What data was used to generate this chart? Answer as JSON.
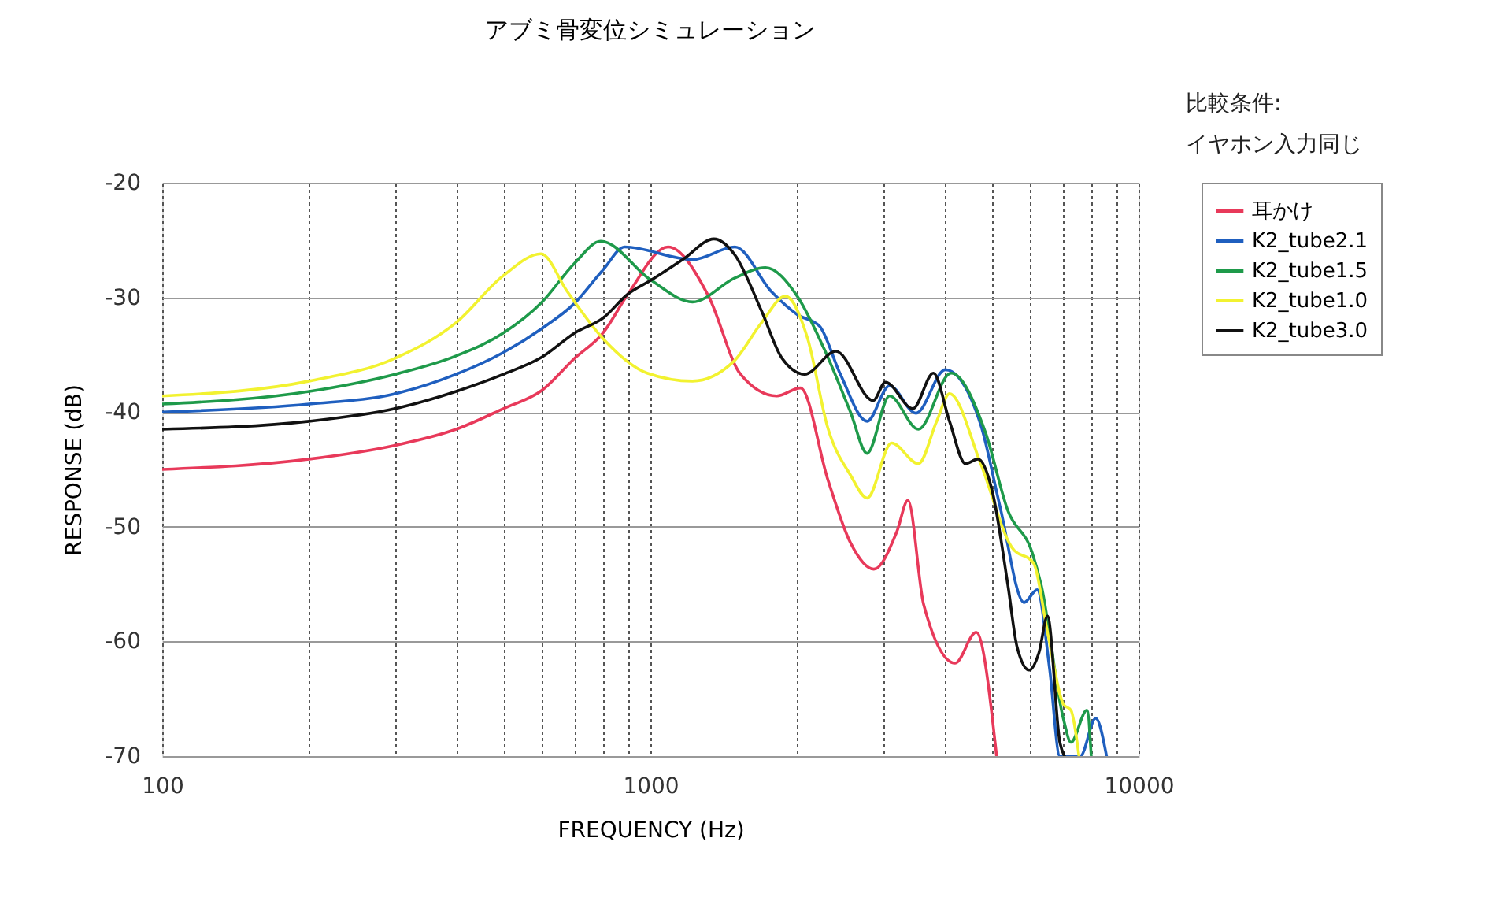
{
  "chart_data": {
    "type": "line",
    "title": "アブミ骨変位シミュレーション",
    "xlabel": "FREQUENCY (Hz)",
    "ylabel": "RESPONSE (dB)",
    "annotations": [
      "比較条件:",
      "イヤホン入力同じ"
    ],
    "log": "x",
    "xlim": [
      100,
      10000
    ],
    "ylim": [
      -70,
      -20
    ],
    "xticks": [
      100,
      {
        "value": 200,
        "label": null
      },
      {
        "value": 300,
        "label": null
      },
      {
        "value": 400,
        "label": null
      },
      {
        "value": 500,
        "label": null
      },
      {
        "value": 600,
        "label": null
      },
      {
        "value": 700,
        "label": null
      },
      {
        "value": 800,
        "label": null
      },
      {
        "value": 900,
        "label": null
      },
      1000,
      {
        "value": 2000,
        "label": null
      },
      {
        "value": 3000,
        "label": null
      },
      {
        "value": 4000,
        "label": null
      },
      {
        "value": 5000,
        "label": null
      },
      {
        "value": 6000,
        "label": null
      },
      {
        "value": 7000,
        "label": null
      },
      {
        "value": 8000,
        "label": null
      },
      {
        "value": 9000,
        "label": null
      },
      10000
    ],
    "yticks": [
      -70,
      -60,
      -50,
      -40,
      -30,
      -20
    ],
    "grid": true,
    "legend": "right",
    "marker": "none",
    "line_style": "solid",
    "series": [
      {
        "name": "耳かけ",
        "color": "#e8395a",
        "x": [
          100,
          200,
          300,
          400,
          500,
          600,
          700,
          800,
          900,
          1087,
          1316,
          1530,
          1815,
          2030,
          2310,
          2570,
          2870,
          3200,
          3370,
          3630,
          4210,
          4650,
          5120
        ],
        "values": [
          -45.0,
          -44.1,
          -42.9,
          -41.5,
          -39.7,
          -38.1,
          -35.3,
          -33.1,
          -29.7,
          -25.6,
          -29.9,
          -36.7,
          -38.6,
          -37.9,
          -45.9,
          -51.4,
          -53.7,
          -50.4,
          -47.7,
          -56.8,
          -61.9,
          -59.2,
          -70
        ]
      },
      {
        "name": "K2_tube2.1",
        "color": "#1f5fbf",
        "x": [
          100,
          200,
          300,
          400,
          500,
          600,
          700,
          800,
          886,
          1220,
          1490,
          1770,
          2000,
          2220,
          2450,
          2780,
          3090,
          3500,
          4020,
          4750,
          5200,
          5830,
          6200,
          6570,
          6900,
          7600,
          8170,
          8600
        ],
        "values": [
          -40.0,
          -39.3,
          -38.4,
          -36.7,
          -34.8,
          -32.7,
          -30.5,
          -27.6,
          -25.6,
          -26.7,
          -25.6,
          -29.5,
          -31.5,
          -32.5,
          -36.7,
          -40.8,
          -37.7,
          -40.1,
          -36.3,
          -41.1,
          -48.2,
          -56.6,
          -55.5,
          -62.3,
          -70,
          -70,
          -66.7,
          -70
        ]
      },
      {
        "name": "K2_tube1.5",
        "color": "#1e9a4a",
        "x": [
          100,
          200,
          300,
          400,
          500,
          600,
          700,
          791,
          1003,
          1220,
          1490,
          1720,
          2000,
          2270,
          2570,
          2780,
          3090,
          3540,
          4130,
          4860,
          5400,
          6060,
          6320,
          7020,
          7270,
          7840,
          8000
        ],
        "values": [
          -39.3,
          -38.2,
          -36.7,
          -35.1,
          -33.1,
          -30.4,
          -27.0,
          -25.1,
          -28.5,
          -30.4,
          -28.3,
          -27.4,
          -29.9,
          -34.5,
          -40.0,
          -43.6,
          -38.6,
          -41.5,
          -36.6,
          -41.8,
          -48.6,
          -52.3,
          -55.1,
          -66.8,
          -68.8,
          -66.0,
          -70
        ]
      },
      {
        "name": "K2_tube1.0",
        "color": "#f2f230",
        "x": [
          100,
          200,
          300,
          400,
          500,
          597,
          676,
          800,
          985,
          1220,
          1480,
          1690,
          1890,
          2100,
          2310,
          2570,
          2780,
          3120,
          3540,
          3860,
          4100,
          4750,
          5500,
          6100,
          6510,
          7020,
          7270,
          7550
        ],
        "values": [
          -38.6,
          -37.3,
          -35.3,
          -32.2,
          -28.1,
          -26.2,
          -29.5,
          -33.6,
          -36.6,
          -37.3,
          -35.6,
          -32.2,
          -29.9,
          -33.6,
          -41.4,
          -45.5,
          -47.5,
          -42.7,
          -44.5,
          -40.8,
          -38.4,
          -44.5,
          -51.8,
          -53.2,
          -59.2,
          -65.5,
          -66.0,
          -70
        ]
      },
      {
        "name": "K2_tube3.0",
        "color": "#111111",
        "x": [
          100,
          200,
          300,
          400,
          500,
          600,
          700,
          800,
          900,
          1003,
          1165,
          1350,
          1490,
          1690,
          1860,
          2070,
          2400,
          2860,
          3030,
          3450,
          3800,
          4100,
          4420,
          4690,
          5010,
          5400,
          5640,
          5970,
          6250,
          6510,
          6900,
          7050
        ],
        "values": [
          -41.5,
          -40.8,
          -39.7,
          -38.2,
          -36.7,
          -35.2,
          -33.1,
          -31.8,
          -29.7,
          -28.5,
          -26.7,
          -24.9,
          -26.3,
          -31.2,
          -35.3,
          -36.7,
          -34.7,
          -39.0,
          -37.4,
          -39.7,
          -36.6,
          -40.8,
          -44.5,
          -44.1,
          -46.8,
          -55.1,
          -60.5,
          -62.5,
          -61.0,
          -57.8,
          -68.8,
          -70
        ]
      }
    ]
  }
}
